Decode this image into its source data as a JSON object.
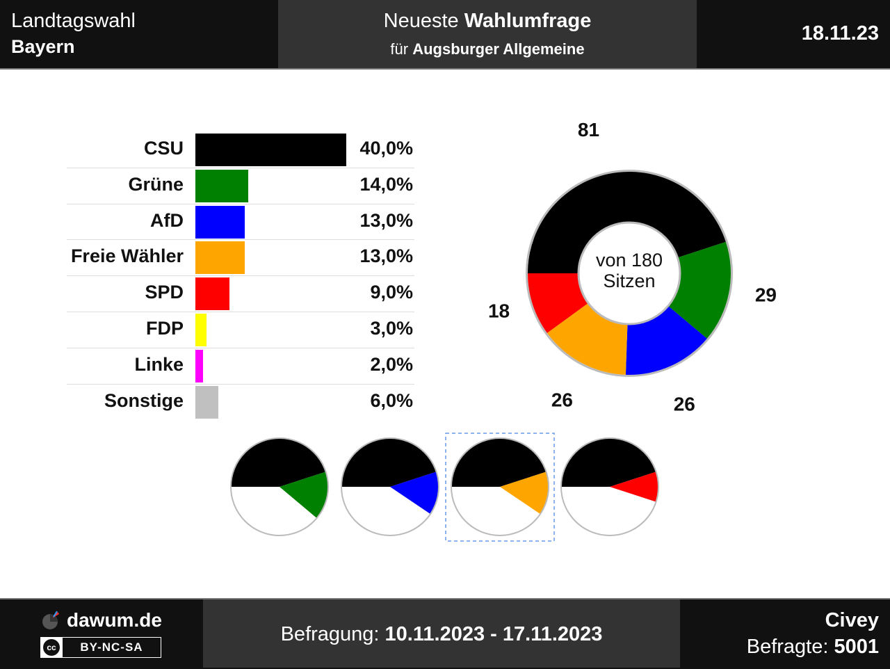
{
  "header": {
    "election_type": "Landtagswahl",
    "region": "Bayern",
    "title_normal": "Neueste",
    "title_bold": "Wahlumfrage",
    "subtitle_prefix": "für",
    "client": "Augsburger Allgemeine",
    "date": "18.11.23"
  },
  "footer": {
    "site": "dawum.de",
    "license": "BY-NC-SA",
    "license_badge": "cc",
    "period_label": "Befragung:",
    "period": "10.11.2023 - 17.11.2023",
    "institute": "Civey",
    "respondents_label": "Befragte:",
    "respondents": "5001"
  },
  "chart_data": [
    {
      "type": "bar",
      "orientation": "horizontal",
      "categories": [
        "CSU",
        "Grüne",
        "AfD",
        "Freie Wähler",
        "SPD",
        "FDP",
        "Linke",
        "Sonstige"
      ],
      "values": [
        40.0,
        14.0,
        13.0,
        13.0,
        9.0,
        3.0,
        2.0,
        6.0
      ],
      "labels": [
        "40,0%",
        "14,0%",
        "13,0%",
        "13,0%",
        "9,0%",
        "3,0%",
        "2,0%",
        "6,0%"
      ],
      "colors": [
        "#000000",
        "#008000",
        "#0000ff",
        "#ffa500",
        "#ff0000",
        "#ffff00",
        "#ff00ff",
        "#c0c0c0"
      ],
      "xlim": [
        0,
        40
      ]
    },
    {
      "type": "pie",
      "variant": "donut",
      "center_text_line1": "von 180",
      "center_text_line2": "Sitzen",
      "total_seats": 180,
      "slices": [
        {
          "party": "CSU",
          "seats": 81,
          "color": "#000000"
        },
        {
          "party": "Grüne",
          "seats": 29,
          "color": "#008000"
        },
        {
          "party": "AfD",
          "seats": 26,
          "color": "#0000ff"
        },
        {
          "party": "Freie Wähler",
          "seats": 26,
          "color": "#ffa500"
        },
        {
          "party": "SPD",
          "seats": 18,
          "color": "#ff0000"
        }
      ]
    },
    {
      "type": "pie",
      "variant": "coalition-options",
      "total_seats": 180,
      "coalitions": [
        {
          "parties": [
            "CSU",
            "Grüne"
          ],
          "seats": [
            81,
            29
          ],
          "colors": [
            "#000000",
            "#008000"
          ],
          "highlighted": false
        },
        {
          "parties": [
            "CSU",
            "AfD"
          ],
          "seats": [
            81,
            26
          ],
          "colors": [
            "#000000",
            "#0000ff"
          ],
          "highlighted": false
        },
        {
          "parties": [
            "CSU",
            "Freie Wähler"
          ],
          "seats": [
            81,
            26
          ],
          "colors": [
            "#000000",
            "#ffa500"
          ],
          "highlighted": true
        },
        {
          "parties": [
            "CSU",
            "SPD"
          ],
          "seats": [
            81,
            18
          ],
          "colors": [
            "#000000",
            "#ff0000"
          ],
          "highlighted": false
        }
      ]
    }
  ]
}
